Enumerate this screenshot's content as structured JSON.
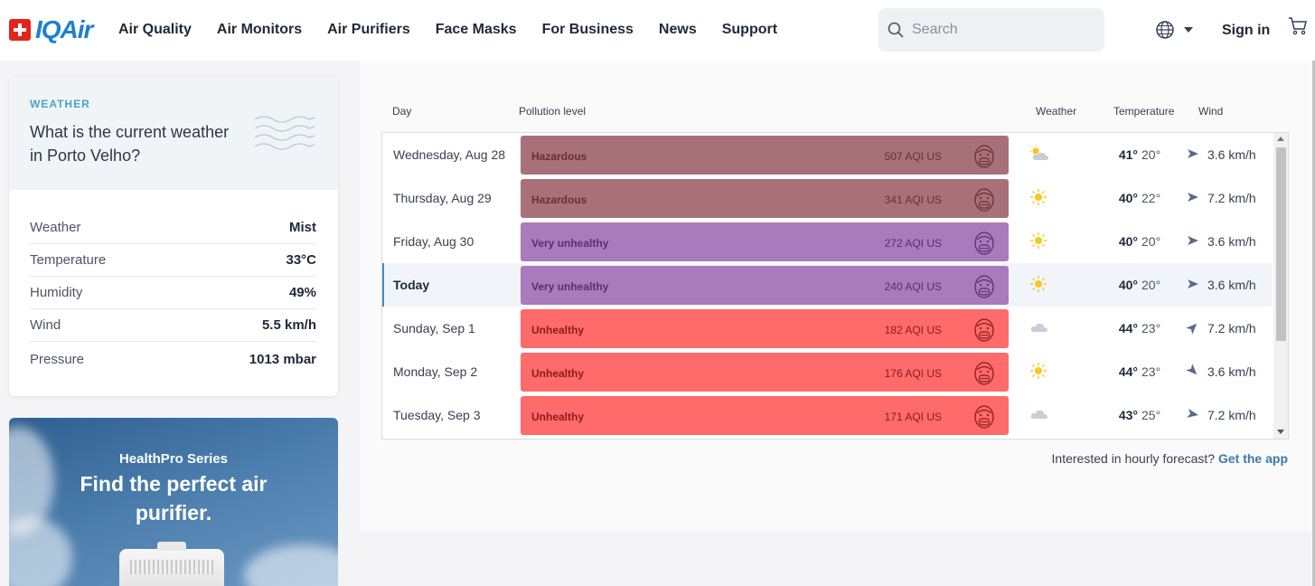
{
  "header": {
    "logo_text": "IQAir",
    "nav": [
      "Air Quality",
      "Air Monitors",
      "Air Purifiers",
      "Face Masks",
      "For Business",
      "News",
      "Support"
    ],
    "search_placeholder": "Search",
    "signin_label": "Sign in"
  },
  "weather_card": {
    "label": "WEATHER",
    "title": "What is the current weather in Porto Velho?",
    "rows": [
      {
        "key": "Weather",
        "value": "Mist"
      },
      {
        "key": "Temperature",
        "value": "33°C"
      },
      {
        "key": "Humidity",
        "value": "49%"
      },
      {
        "key": "Wind",
        "value": "5.5 km/h"
      },
      {
        "key": "Pressure",
        "value": "1013 mbar"
      }
    ]
  },
  "ad": {
    "series": "HealthPro Series",
    "headline": "Find the perfect air purifier."
  },
  "forecast": {
    "headers": {
      "day": "Day",
      "pollution": "Pollution level",
      "weather": "Weather",
      "temperature": "Temperature",
      "wind": "Wind"
    },
    "rows": [
      {
        "day": "Wednesday, Aug 28",
        "level": "Hazardous",
        "aqi": "507 AQI US",
        "weather_icon": "partly-cloudy-icon",
        "hi": "41°",
        "lo": "20°",
        "wind_dir": 90,
        "wind": "3.6 km/h",
        "today": false
      },
      {
        "day": "Thursday, Aug 29",
        "level": "Hazardous",
        "aqi": "341 AQI US",
        "weather_icon": "sun-icon",
        "hi": "40°",
        "lo": "22°",
        "wind_dir": 90,
        "wind": "7.2 km/h",
        "today": false
      },
      {
        "day": "Friday, Aug 30",
        "level": "Very unhealthy",
        "aqi": "272 AQI US",
        "weather_icon": "sun-icon",
        "hi": "40°",
        "lo": "20°",
        "wind_dir": 90,
        "wind": "3.6 km/h",
        "today": false
      },
      {
        "day": "Today",
        "level": "Very unhealthy",
        "aqi": "240 AQI US",
        "weather_icon": "sun-icon",
        "hi": "40°",
        "lo": "20°",
        "wind_dir": 90,
        "wind": "3.6 km/h",
        "today": true
      },
      {
        "day": "Sunday, Sep 1",
        "level": "Unhealthy",
        "aqi": "182 AQI US",
        "weather_icon": "cloud-icon",
        "hi": "44°",
        "lo": "23°",
        "wind_dir": 45,
        "wind": "7.2 km/h",
        "today": false
      },
      {
        "day": "Monday, Sep 2",
        "level": "Unhealthy",
        "aqi": "176 AQI US",
        "weather_icon": "sun-icon",
        "hi": "44°",
        "lo": "23°",
        "wind_dir": 135,
        "wind": "3.6 km/h",
        "today": false
      },
      {
        "day": "Tuesday, Sep 3",
        "level": "Unhealthy",
        "aqi": "171 AQI US",
        "weather_icon": "cloud-icon",
        "hi": "43°",
        "lo": "25°",
        "wind_dir": 100,
        "wind": "7.2 km/h",
        "today": false
      }
    ],
    "hourly_text": "Interested in hourly forecast?",
    "hourly_link": "Get the app"
  },
  "colors": {
    "Hazardous": {
      "bg": "#a87179",
      "fg": "#6b2e3a"
    },
    "Very unhealthy": {
      "bg": "#a97abc",
      "fg": "#5c2e72"
    },
    "Unhealthy": {
      "bg": "#ff6a6a",
      "fg": "#8c1c1c"
    }
  }
}
